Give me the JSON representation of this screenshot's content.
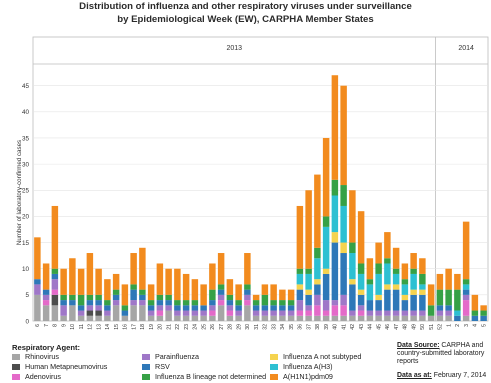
{
  "title_line1": "Distribution of influenza and other respiratory viruses under surveillance",
  "title_line2": "by Epidemiological Week (EW), CARPHA Member States",
  "legend_title": "Respiratory Agent:",
  "data_source_label": "Data Source:",
  "data_source_text": " CARPHA and country-submitted laboratory reports",
  "data_as_at_label": "Data as at:",
  "data_as_at_text": " February 7, 2014",
  "chart_data": {
    "type": "bar",
    "stacked": true,
    "ylabel": "Number of laboratory-confirmed cases",
    "ylim": [
      0,
      48
    ],
    "yticks": [
      0,
      5,
      10,
      15,
      20,
      25,
      30,
      35,
      40,
      45
    ],
    "grid": true,
    "legend_position": "bottom",
    "year_labels": [
      {
        "label": "2013",
        "start": 0,
        "end": 46
      },
      {
        "label": "2014",
        "start": 46,
        "end": 53
      }
    ],
    "categories": [
      "6",
      "7",
      "8",
      "9",
      "10",
      "11",
      "12",
      "13",
      "14",
      "15",
      "16",
      "17",
      "18",
      "19",
      "20",
      "21",
      "22",
      "23",
      "24",
      "25",
      "26",
      "27",
      "28",
      "29",
      "30",
      "31",
      "32",
      "33",
      "34",
      "35",
      "36",
      "37",
      "38",
      "39",
      "40",
      "41",
      "42",
      "43",
      "44",
      "45",
      "46",
      "47",
      "48",
      "49",
      "50",
      "51",
      "52",
      "1",
      "2",
      "3",
      "4",
      "5"
    ],
    "series": [
      {
        "name": "Rhinovirus",
        "color": "#a6a6a6",
        "values": [
          5,
          3,
          3,
          1,
          3,
          1,
          1,
          1,
          1,
          3,
          1,
          3,
          3,
          1,
          1,
          2,
          1,
          1,
          1,
          1,
          1,
          3,
          1,
          1,
          3,
          1,
          1,
          1,
          1,
          1,
          1,
          1,
          1,
          1,
          1,
          1,
          1,
          1,
          1,
          1,
          1,
          1,
          1,
          1,
          1,
          1,
          1,
          1,
          0,
          1,
          0,
          0
        ]
      },
      {
        "name": "Human Metapneumovirus",
        "color": "#4d4d4d",
        "values": [
          0,
          0,
          2,
          0,
          0,
          0,
          1,
          1,
          0,
          0,
          0,
          0,
          0,
          0,
          0,
          0,
          0,
          0,
          0,
          0,
          0,
          0,
          0,
          0,
          0,
          0,
          0,
          0,
          0,
          0,
          0,
          0,
          0,
          0,
          0,
          0,
          0,
          0,
          0,
          0,
          0,
          0,
          0,
          0,
          0,
          0,
          0,
          0,
          0,
          0,
          0,
          0
        ]
      },
      {
        "name": "Adenovirus",
        "color": "#e46ac9",
        "values": [
          0,
          1,
          1,
          0,
          0,
          0,
          0,
          0,
          0,
          0,
          0,
          0,
          0,
          0,
          1,
          0,
          0,
          0,
          0,
          0,
          1,
          1,
          1,
          0,
          1,
          0,
          0,
          0,
          0,
          0,
          1,
          1,
          2,
          1,
          2,
          2,
          0,
          1,
          0,
          0,
          0,
          0,
          0,
          0,
          0,
          0,
          0,
          0,
          0,
          3,
          0,
          0
        ]
      },
      {
        "name": "Parainfluenza",
        "color": "#9f77c8",
        "values": [
          2,
          1,
          2,
          2,
          0,
          1,
          1,
          1,
          1,
          1,
          0,
          1,
          1,
          1,
          1,
          1,
          1,
          1,
          1,
          1,
          1,
          1,
          1,
          1,
          1,
          1,
          1,
          1,
          1,
          1,
          2,
          1,
          2,
          2,
          1,
          2,
          1,
          1,
          1,
          1,
          1,
          1,
          1,
          1,
          1,
          0,
          1,
          1,
          0,
          1,
          0,
          0
        ]
      },
      {
        "name": "RSV",
        "color": "#2e78b8",
        "values": [
          1,
          1,
          1,
          1,
          1,
          1,
          1,
          1,
          1,
          1,
          1,
          2,
          1,
          1,
          1,
          1,
          1,
          1,
          1,
          1,
          1,
          1,
          1,
          1,
          1,
          1,
          1,
          1,
          1,
          1,
          2,
          2,
          2,
          5,
          11,
          8,
          5,
          2,
          2,
          2,
          4,
          4,
          2,
          3,
          3,
          0,
          1,
          1,
          1,
          1,
          1,
          1
        ]
      },
      {
        "name": "Influenza A not subtyped",
        "color": "#f5d34f",
        "values": [
          0,
          0,
          0,
          0,
          0,
          0,
          0,
          0,
          0,
          0,
          0,
          0,
          0,
          0,
          0,
          0,
          0,
          0,
          0,
          0,
          0,
          0,
          0,
          0,
          0,
          0,
          0,
          0,
          0,
          0,
          1,
          1,
          1,
          1,
          2,
          2,
          1,
          1,
          0,
          1,
          1,
          1,
          1,
          1,
          1,
          0,
          0,
          0,
          0,
          0,
          0,
          0
        ]
      },
      {
        "name": "Influenza A(H3)",
        "color": "#2dc0d2",
        "values": [
          0,
          0,
          0,
          0,
          0,
          0,
          0,
          0,
          0,
          0,
          0,
          0,
          0,
          0,
          0,
          0,
          0,
          0,
          0,
          0,
          0,
          0,
          0,
          0,
          0,
          0,
          0,
          0,
          0,
          0,
          2,
          3,
          4,
          8,
          7,
          7,
          5,
          3,
          3,
          4,
          4,
          2,
          2,
          3,
          1,
          0,
          0,
          0,
          1,
          1,
          0,
          0
        ]
      },
      {
        "name": "Influenza B lineage not determined",
        "color": "#36a146",
        "values": [
          0,
          0,
          1,
          1,
          1,
          2,
          1,
          1,
          1,
          1,
          1,
          1,
          1,
          1,
          1,
          1,
          1,
          1,
          1,
          0,
          2,
          1,
          1,
          1,
          1,
          1,
          2,
          1,
          1,
          1,
          1,
          1,
          2,
          2,
          3,
          4,
          2,
          2,
          1,
          2,
          1,
          1,
          1,
          1,
          2,
          2,
          3,
          3,
          4,
          1,
          1,
          1
        ]
      },
      {
        "name": "A(H1N1)pdm09",
        "color": "#f28b1e",
        "values": [
          8,
          5,
          12,
          5,
          7,
          5,
          8,
          5,
          4,
          3,
          4,
          6,
          8,
          3,
          6,
          5,
          6,
          5,
          4,
          4,
          5,
          6,
          3,
          3,
          6,
          1,
          2,
          3,
          2,
          2,
          12,
          15,
          14,
          15,
          20,
          19,
          10,
          10,
          4,
          4,
          5,
          4,
          3,
          3,
          3,
          4,
          3,
          4,
          3,
          11,
          3,
          1
        ]
      }
    ]
  }
}
